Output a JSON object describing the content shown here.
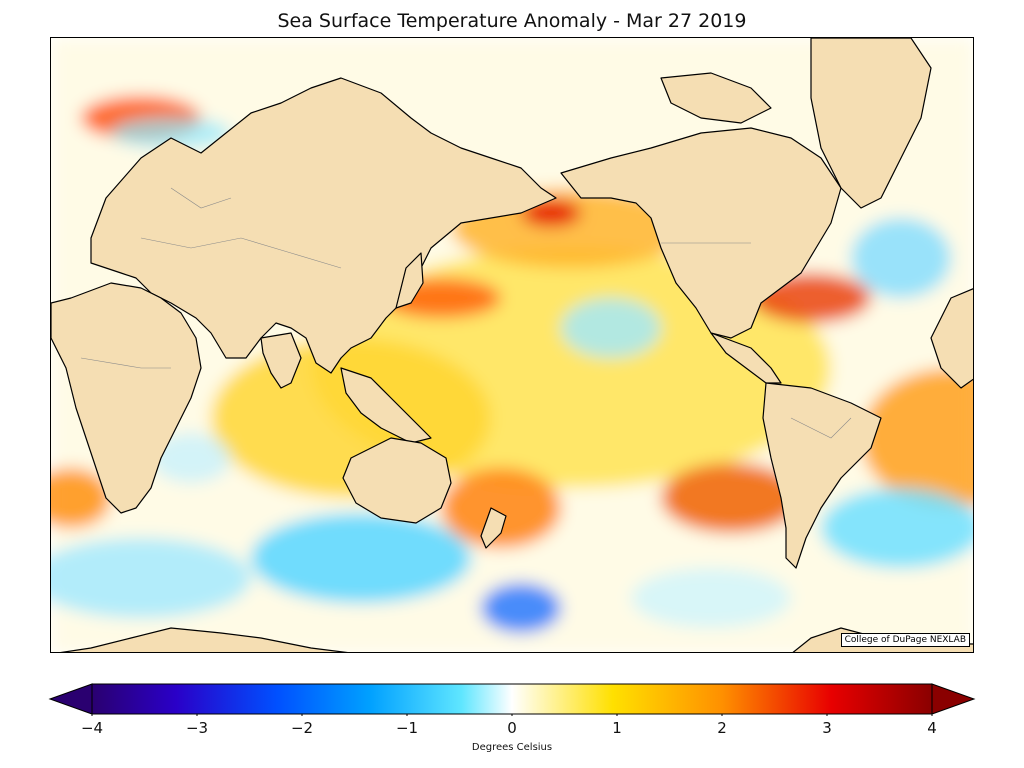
{
  "title": "Sea Surface Temperature Anomaly - Mar 27 2019",
  "credit": "College of DuPage NEXLAB",
  "colorbar": {
    "label": "Degrees Celsius",
    "min": -4,
    "max": 4,
    "ticks": [
      "−4",
      "−3",
      "−2",
      "−1",
      "0",
      "1",
      "2",
      "3",
      "4"
    ],
    "colors": [
      "#2a0070",
      "#2a00c8",
      "#0050ff",
      "#00a0ff",
      "#5fe6ff",
      "#ffffff",
      "#ffe000",
      "#ff9000",
      "#e80000",
      "#8a0000"
    ]
  },
  "colors": {
    "land": "#f5deb3",
    "coast": "#000000",
    "warm": "#ffd21a",
    "hot": "#e83000",
    "cool": "#7fe0ff",
    "cold": "#1a60ff"
  }
}
